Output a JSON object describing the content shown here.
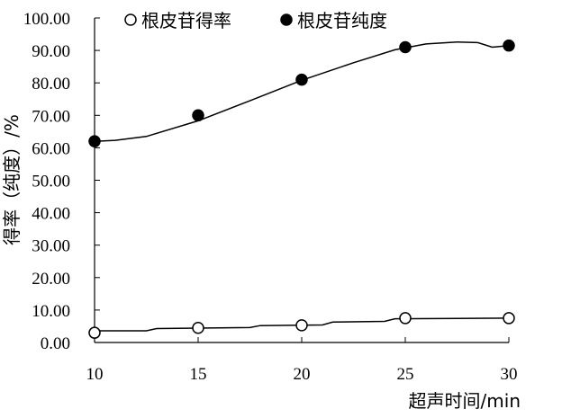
{
  "chart_data": {
    "type": "line",
    "xlabel": "超声时间/min",
    "ylabel": "得率（纯度）/%",
    "x_ticks": [
      "10",
      "15",
      "20",
      "25",
      "30"
    ],
    "y_ticks": [
      "0.00",
      "10.00",
      "20.00",
      "30.00",
      "40.00",
      "50.00",
      "60.00",
      "70.00",
      "80.00",
      "90.00",
      "100.00"
    ],
    "xlim": [
      10,
      30
    ],
    "ylim": [
      0,
      100
    ],
    "grid": false,
    "legend_position": "top",
    "series": [
      {
        "name": "根皮苷得率",
        "marker": "open-circle",
        "x": [
          10,
          15,
          20,
          25,
          30
        ],
        "y": [
          3.0,
          4.5,
          5.3,
          7.5,
          7.5
        ],
        "curve": [
          [
            10,
            3.6
          ],
          [
            12.5,
            3.6
          ],
          [
            13,
            4.3
          ],
          [
            17.5,
            4.6
          ],
          [
            18,
            5.2
          ],
          [
            21,
            5.4
          ],
          [
            21.5,
            6.3
          ],
          [
            24,
            6.5
          ],
          [
            24.5,
            7.3
          ],
          [
            30,
            7.5
          ]
        ]
      },
      {
        "name": "根皮苷纯度",
        "marker": "filled-circle",
        "x": [
          10,
          15,
          20,
          25,
          30
        ],
        "y": [
          62.0,
          70.0,
          81.0,
          91.0,
          91.5
        ],
        "curve": [
          [
            10,
            62.0
          ],
          [
            11,
            62.3
          ],
          [
            12.5,
            63.5
          ],
          [
            15,
            68.3
          ],
          [
            17.5,
            74.5
          ],
          [
            20,
            80.8
          ],
          [
            22.5,
            86.2
          ],
          [
            24.5,
            90.2
          ],
          [
            26,
            92.0
          ],
          [
            27.5,
            92.6
          ],
          [
            28.5,
            92.4
          ],
          [
            29.2,
            91.0
          ],
          [
            30,
            91.5
          ]
        ]
      }
    ]
  }
}
